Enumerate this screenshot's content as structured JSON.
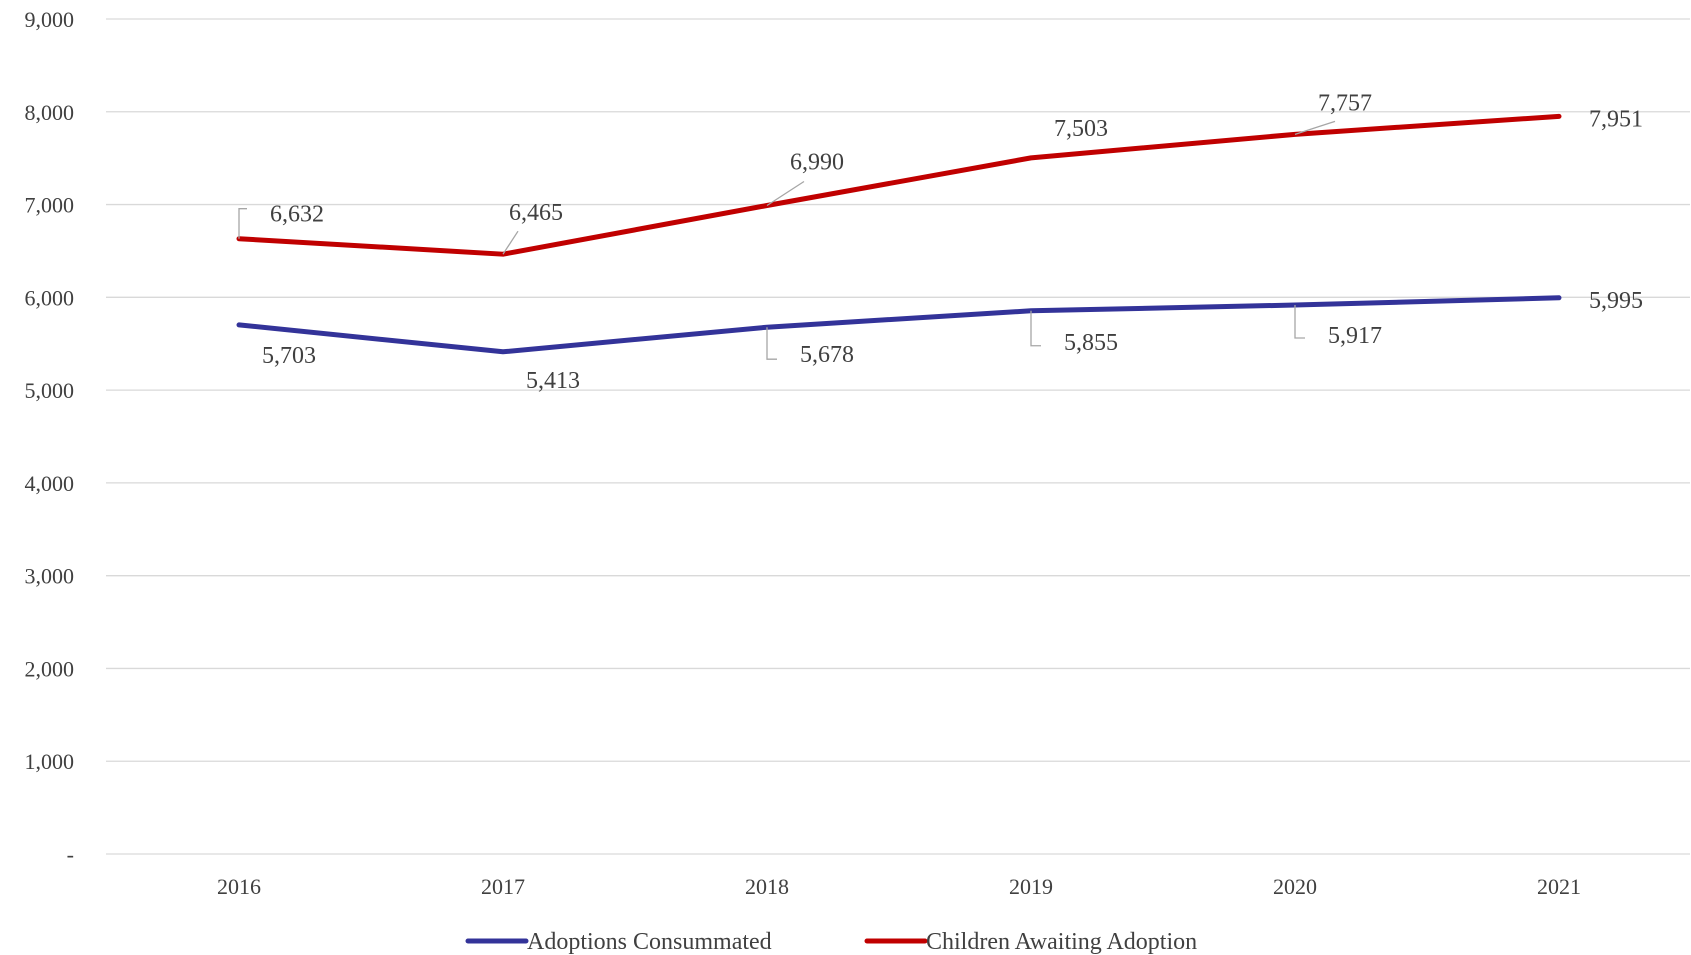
{
  "chart_data": {
    "type": "line",
    "categories": [
      "2016",
      "2017",
      "2018",
      "2019",
      "2020",
      "2021"
    ],
    "ylim": [
      0,
      9000
    ],
    "yticks": [
      {
        "value": 0,
        "label": "-"
      },
      {
        "value": 1000,
        "label": "1,000"
      },
      {
        "value": 2000,
        "label": "2,000"
      },
      {
        "value": 3000,
        "label": "3,000"
      },
      {
        "value": 4000,
        "label": "4,000"
      },
      {
        "value": 5000,
        "label": "5,000"
      },
      {
        "value": 6000,
        "label": "6,000"
      },
      {
        "value": 7000,
        "label": "7,000"
      },
      {
        "value": 8000,
        "label": "8,000"
      },
      {
        "value": 9000,
        "label": "9,000"
      }
    ],
    "grid": true,
    "legend_position": "bottom",
    "series": [
      {
        "name": "Adoptions Consummated",
        "color": "#333399",
        "values": [
          5703,
          5413,
          5678,
          5855,
          5917,
          5995
        ],
        "labels": [
          "5,703",
          "5,413",
          "5,678",
          "5,855",
          "5,917",
          "5,995"
        ]
      },
      {
        "name": "Children Awaiting Adoption",
        "color": "#c00000",
        "values": [
          6632,
          6465,
          6990,
          7503,
          7757,
          7951
        ],
        "labels": [
          "6,632",
          "6,465",
          "6,990",
          "7,503",
          "7,757",
          "7,951"
        ]
      }
    ]
  }
}
